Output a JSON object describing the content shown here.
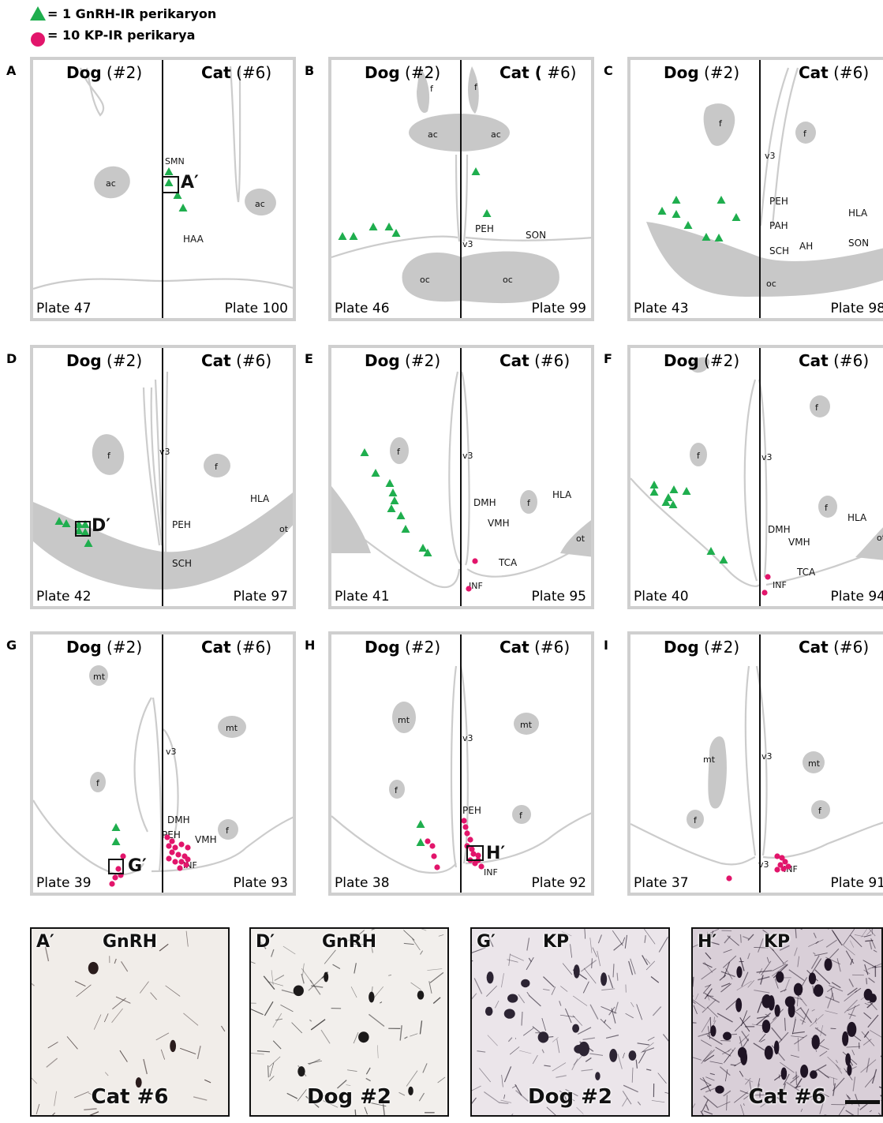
{
  "legend": {
    "gnrh_label": "= 1 GnRH-IR perikaryon",
    "kp_label": "= 10 KP-IR perikarya",
    "gnrh_color": "#1fae4e",
    "kp_color": "#e2156b"
  },
  "colors": {
    "frame": "#cfcfcf",
    "tissue": "#c8c8c8",
    "outline": "#cccccc"
  },
  "panels": [
    {
      "id": "A",
      "dog": "Dog",
      "dog_id": "(#2)",
      "cat": "Cat",
      "cat_id": "(#6)",
      "plate_left": "Plate 47",
      "plate_right": "Plate 100"
    },
    {
      "id": "B",
      "dog": "Dog",
      "dog_id": "(#2)",
      "cat": "Cat (",
      "cat_id": "#6)",
      "plate_left": "Plate 46",
      "plate_right": "Plate 99"
    },
    {
      "id": "C",
      "dog": "Dog",
      "dog_id": "(#2)",
      "cat": "Cat",
      "cat_id": "(#6)",
      "plate_left": "Plate 43",
      "plate_right": "Plate 98"
    },
    {
      "id": "D",
      "dog": "Dog",
      "dog_id": "(#2)",
      "cat": "Cat",
      "cat_id": "(#6)",
      "plate_left": "Plate 42",
      "plate_right": "Plate 97"
    },
    {
      "id": "E",
      "dog": "Dog",
      "dog_id": "(#2)",
      "cat": "Cat",
      "cat_id": "(#6)",
      "plate_left": "Plate 41",
      "plate_right": "Plate 95"
    },
    {
      "id": "F",
      "dog": "Dog",
      "dog_id": "(#2)",
      "cat": "Cat",
      "cat_id": "(#6)",
      "plate_left": "Plate 40",
      "plate_right": "Plate 94"
    },
    {
      "id": "G",
      "dog": "Dog",
      "dog_id": "(#2)",
      "cat": "Cat",
      "cat_id": "(#6)",
      "plate_left": "Plate 39",
      "plate_right": "Plate 93"
    },
    {
      "id": "H",
      "dog": "Dog",
      "dog_id": "(#2)",
      "cat": "Cat",
      "cat_id": "(#6)",
      "plate_left": "Plate 38",
      "plate_right": "Plate 92"
    },
    {
      "id": "I",
      "dog": "Dog",
      "dog_id": "(#2)",
      "cat": "Cat",
      "cat_id": "(#6)",
      "plate_left": "Plate 37",
      "plate_right": "Plate 91"
    }
  ],
  "region_labels": {
    "SMN": "SMN",
    "HAA": "HAA",
    "ac": "ac",
    "f": "f",
    "oc": "oc",
    "v3": "v3",
    "PEH": "PEH",
    "SON": "SON",
    "PAH": "PAH",
    "SCH": "SCH",
    "AH": "AH",
    "HLA": "HLA",
    "ot": "ot",
    "DMH": "DMH",
    "VMH": "VMH",
    "TCA": "TCA",
    "INF": "INF",
    "mt": "mt"
  },
  "insets": {
    "A": "A′",
    "D": "D′",
    "G": "G′",
    "H": "H′"
  },
  "micrographs": [
    {
      "id": "A′",
      "stain": "GnRH",
      "animal": "Cat #6"
    },
    {
      "id": "D′",
      "stain": "GnRH",
      "animal": "Dog #2"
    },
    {
      "id": "G′",
      "stain": "KP",
      "animal": "Dog #2"
    },
    {
      "id": "H′",
      "stain": "KP",
      "animal": "Cat #6"
    }
  ]
}
